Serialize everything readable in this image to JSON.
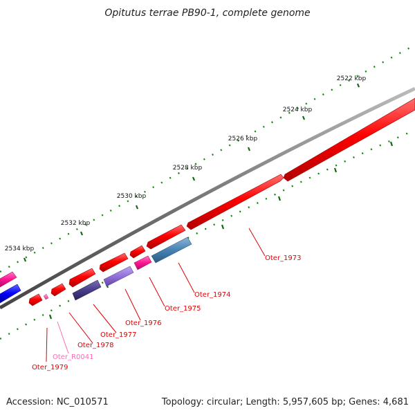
{
  "title": "Opitutus terrae PB90-1, complete genome",
  "ruler": {
    "ticks": [
      "2522 kbp",
      "2524 kbp",
      "2526 kbp",
      "2528 kbp",
      "2530 kbp",
      "2532 kbp",
      "2534 kbp"
    ]
  },
  "genes": [
    {
      "label": "Oter_1973",
      "strand": "forward",
      "color": "#ff0000"
    },
    {
      "label": "Oter_1974",
      "strand": "reverse",
      "color": "#4682b4"
    },
    {
      "label": "Oter_1975",
      "strand": "reverse",
      "color": "#ff1493"
    },
    {
      "label": "Oter_1976",
      "strand": "reverse",
      "color": "#9370db"
    },
    {
      "label": "Oter_1977",
      "strand": "reverse",
      "color": "#483d8b"
    },
    {
      "label": "Oter_1978",
      "strand": "forward",
      "color": "#ff0000"
    },
    {
      "label": "Oter_R0041",
      "strand": "forward",
      "color": "#ff69b4"
    },
    {
      "label": "Oter_1979",
      "strand": "forward",
      "color": "#ff0000"
    }
  ],
  "label_colors": {
    "protein": "#e00000",
    "rna": "#ff69b4"
  },
  "footer": {
    "accession": "Accession: NC_010571",
    "summary": "Topology: circular; Length: 5,957,605 bp; Genes: 4,681"
  }
}
